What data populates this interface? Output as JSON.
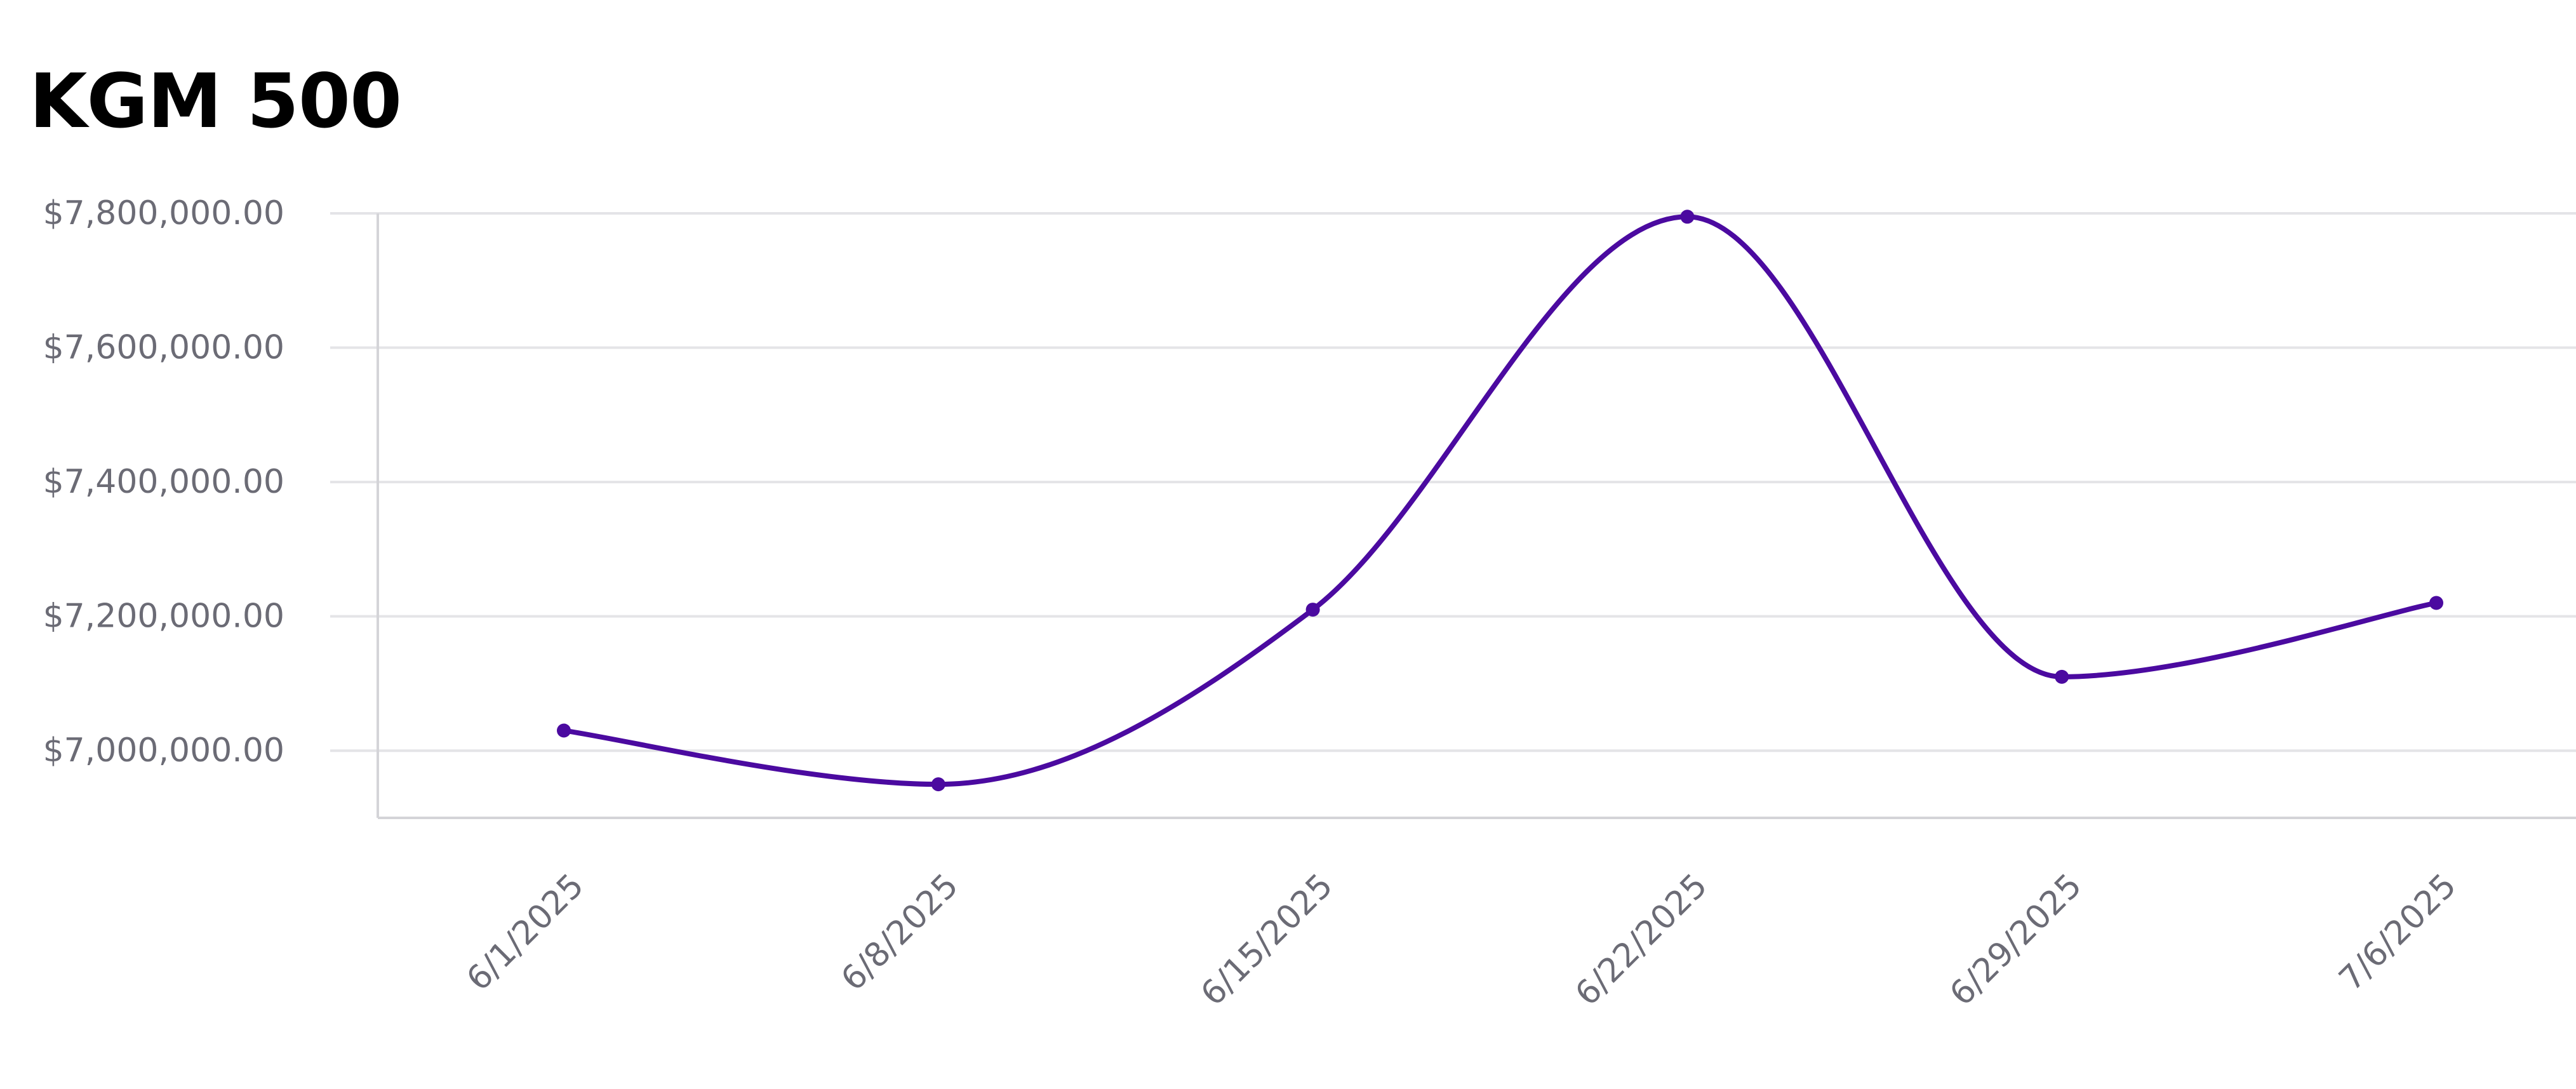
{
  "chart_data": {
    "type": "line",
    "title": "KGM 500",
    "x": [
      "6/1/2025",
      "6/8/2025",
      "6/15/2025",
      "6/22/2025",
      "6/29/2025",
      "7/6/2025"
    ],
    "series": [
      {
        "values": [
          7030000,
          6950000,
          7210000,
          7795000,
          7110000,
          7220000
        ]
      }
    ],
    "y_ticks": [
      "$7,000,000.00",
      "$7,200,000.00",
      "$7,400,000.00",
      "$7,600,000.00",
      "$7,800,000.00"
    ],
    "y_tick_values": [
      7000000,
      7200000,
      7400000,
      7600000,
      7800000
    ],
    "ylim": [
      6900000,
      7800000
    ],
    "grid": "horizontal",
    "legend": "none",
    "colors": {
      "line": "#4b0aa0",
      "grid": "#e4e4e7",
      "axis": "#d4d4d8",
      "tick_text": "#6b6b75"
    }
  }
}
